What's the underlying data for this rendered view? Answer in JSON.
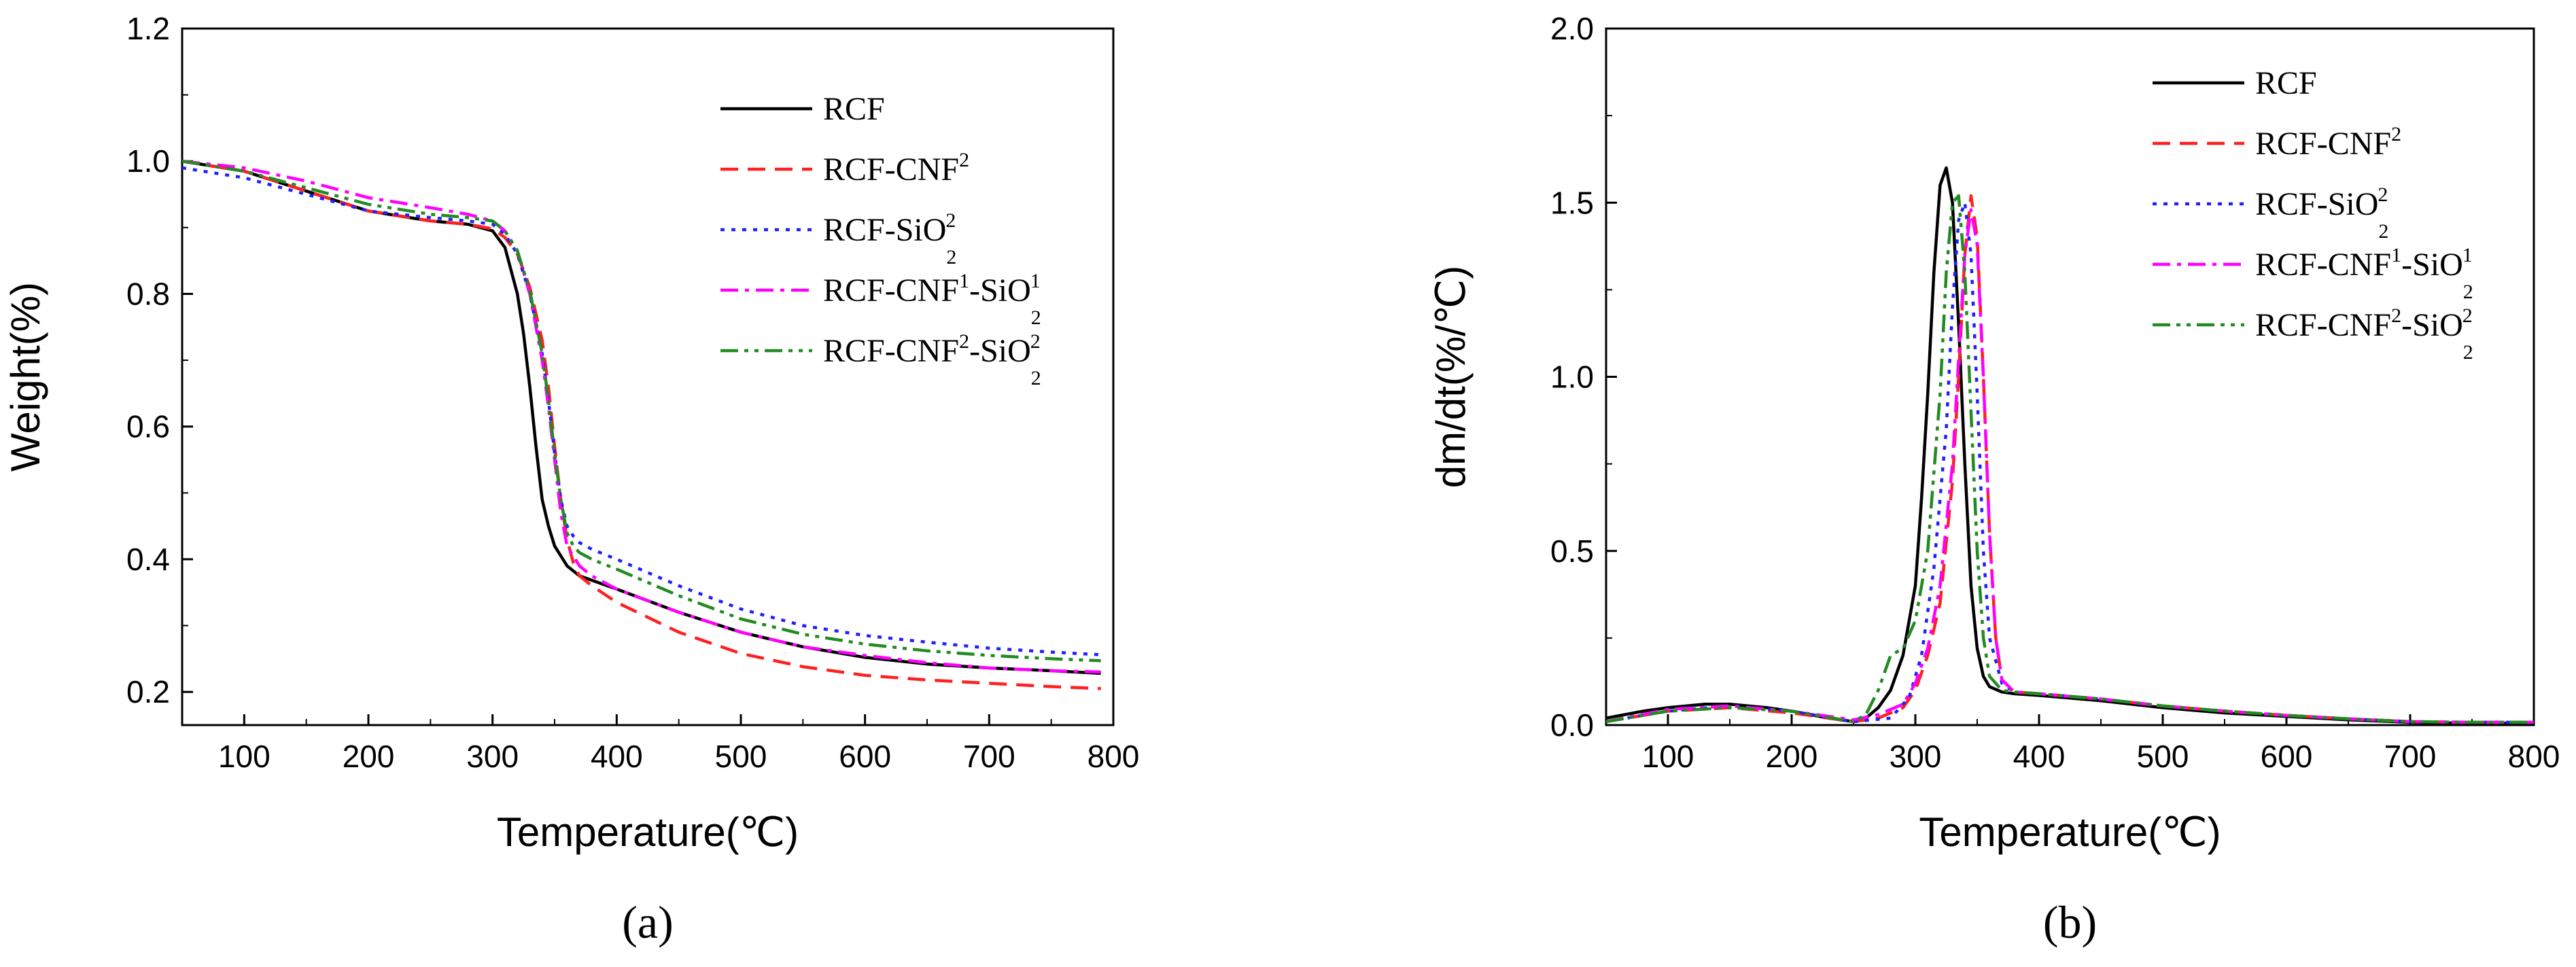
{
  "chart_data": [
    {
      "type": "line",
      "panel_label": "(a)",
      "xlabel": "Temperature(℃)",
      "ylabel": "Weight(%)",
      "xlim": [
        50,
        800
      ],
      "ylim": [
        0.15,
        1.2
      ],
      "xticks": [
        100,
        200,
        300,
        400,
        500,
        600,
        700,
        800
      ],
      "xtick_labels": [
        "100",
        "200",
        "300",
        "400",
        "500",
        "600",
        "700",
        "800"
      ],
      "yticks": [
        0.2,
        0.4,
        0.6,
        0.8,
        1.0,
        1.2
      ],
      "ytick_labels": [
        "0.2",
        "0.4",
        "0.6",
        "0.8",
        "1.0",
        "1.2"
      ],
      "legend_position": "top-right",
      "series": [
        {
          "name": "RCF",
          "legend": [
            [
              "RCF",
              ""
            ]
          ],
          "color": "#000000",
          "dash": "solid",
          "x": [
            50,
            100,
            150,
            200,
            250,
            280,
            300,
            310,
            320,
            325,
            330,
            335,
            340,
            345,
            350,
            360,
            370,
            400,
            450,
            500,
            550,
            600,
            650,
            700,
            750,
            790
          ],
          "y": [
            1.0,
            0.985,
            0.955,
            0.925,
            0.91,
            0.905,
            0.895,
            0.87,
            0.8,
            0.74,
            0.66,
            0.57,
            0.49,
            0.45,
            0.42,
            0.39,
            0.375,
            0.355,
            0.32,
            0.29,
            0.268,
            0.252,
            0.242,
            0.236,
            0.232,
            0.228
          ]
        },
        {
          "name": "RCF-CNF2",
          "legend": [
            [
              "RCF-CNF",
              ""
            ],
            [
              "2",
              "sup"
            ]
          ],
          "color": "#ff2020",
          "dash": "dashed",
          "x": [
            50,
            100,
            150,
            200,
            250,
            280,
            300,
            310,
            320,
            330,
            340,
            345,
            350,
            355,
            360,
            365,
            370,
            380,
            400,
            450,
            500,
            550,
            600,
            650,
            700,
            750,
            790
          ],
          "y": [
            1.0,
            0.985,
            0.955,
            0.925,
            0.91,
            0.905,
            0.898,
            0.885,
            0.86,
            0.81,
            0.73,
            0.66,
            0.57,
            0.49,
            0.43,
            0.395,
            0.375,
            0.36,
            0.335,
            0.29,
            0.258,
            0.238,
            0.225,
            0.218,
            0.213,
            0.208,
            0.205
          ]
        },
        {
          "name": "RCF-SiO22",
          "legend": [
            [
              "RCF-SiO",
              ""
            ],
            [
              "2",
              "sub"
            ],
            [
              "2",
              "sup"
            ]
          ],
          "color": "#2020ff",
          "dash": "dotted",
          "x": [
            50,
            100,
            150,
            200,
            250,
            280,
            300,
            310,
            320,
            330,
            340,
            345,
            350,
            355,
            360,
            365,
            370,
            380,
            400,
            450,
            500,
            550,
            600,
            650,
            700,
            750,
            790
          ],
          "y": [
            0.99,
            0.975,
            0.95,
            0.925,
            0.915,
            0.91,
            0.905,
            0.89,
            0.86,
            0.8,
            0.71,
            0.64,
            0.56,
            0.49,
            0.45,
            0.435,
            0.425,
            0.415,
            0.4,
            0.36,
            0.325,
            0.3,
            0.285,
            0.275,
            0.266,
            0.26,
            0.256
          ]
        },
        {
          "name": "RCF-CNF1-SiO21",
          "legend": [
            [
              "RCF-CNF",
              ""
            ],
            [
              "1",
              "sup"
            ],
            [
              "-SiO",
              ""
            ],
            [
              "2",
              "sub"
            ],
            [
              "1",
              "sup"
            ]
          ],
          "color": "#ff00ff",
          "dash": "dashdot",
          "x": [
            50,
            100,
            150,
            200,
            250,
            280,
            300,
            310,
            320,
            330,
            340,
            345,
            350,
            355,
            360,
            370,
            380,
            400,
            450,
            500,
            550,
            600,
            650,
            700,
            750,
            790
          ],
          "y": [
            1.0,
            0.99,
            0.97,
            0.945,
            0.93,
            0.92,
            0.91,
            0.895,
            0.865,
            0.8,
            0.7,
            0.63,
            0.55,
            0.47,
            0.42,
            0.39,
            0.375,
            0.355,
            0.32,
            0.29,
            0.268,
            0.255,
            0.244,
            0.236,
            0.232,
            0.23
          ]
        },
        {
          "name": "RCF-CNF2-SiO22",
          "legend": [
            [
              "RCF-CNF",
              ""
            ],
            [
              "2",
              "sup"
            ],
            [
              "-SiO",
              ""
            ],
            [
              "2",
              "sub"
            ],
            [
              "2",
              "sup"
            ]
          ],
          "color": "#228b22",
          "dash": "dashdotdot",
          "x": [
            50,
            100,
            150,
            200,
            250,
            280,
            300,
            310,
            320,
            330,
            340,
            345,
            350,
            355,
            360,
            365,
            370,
            380,
            400,
            450,
            500,
            550,
            600,
            650,
            700,
            750,
            790
          ],
          "y": [
            1.0,
            0.985,
            0.96,
            0.935,
            0.92,
            0.915,
            0.91,
            0.895,
            0.865,
            0.805,
            0.71,
            0.64,
            0.56,
            0.49,
            0.44,
            0.42,
            0.41,
            0.4,
            0.385,
            0.345,
            0.31,
            0.287,
            0.272,
            0.262,
            0.255,
            0.25,
            0.247
          ]
        }
      ]
    },
    {
      "type": "line",
      "panel_label": "(b)",
      "xlabel": "Temperature(℃)",
      "ylabel": "dm/dt(%/℃)",
      "xlim": [
        50,
        800
      ],
      "ylim": [
        0,
        2.0
      ],
      "xticks": [
        100,
        200,
        300,
        400,
        500,
        600,
        700,
        800
      ],
      "xtick_labels": [
        "100",
        "200",
        "300",
        "400",
        "500",
        "600",
        "700",
        "800"
      ],
      "yticks": [
        0.0,
        0.5,
        1.0,
        1.5,
        2.0
      ],
      "ytick_labels": [
        "0.0",
        "0.5",
        "1.0",
        "1.5",
        "2.0"
      ],
      "legend_position": "top-right",
      "series": [
        {
          "name": "RCF",
          "legend": [
            [
              "RCF",
              ""
            ]
          ],
          "color": "#000000",
          "dash": "solid",
          "x": [
            50,
            80,
            100,
            130,
            150,
            180,
            200,
            230,
            250,
            260,
            270,
            280,
            290,
            300,
            305,
            310,
            315,
            320,
            325,
            330,
            335,
            340,
            345,
            350,
            355,
            360,
            370,
            380,
            400,
            450,
            500,
            550,
            600,
            650,
            700,
            750,
            800
          ],
          "y": [
            0.02,
            0.04,
            0.05,
            0.06,
            0.06,
            0.05,
            0.04,
            0.02,
            0.01,
            0.02,
            0.05,
            0.1,
            0.2,
            0.4,
            0.65,
            0.95,
            1.3,
            1.55,
            1.6,
            1.5,
            1.15,
            0.75,
            0.4,
            0.22,
            0.14,
            0.11,
            0.095,
            0.09,
            0.085,
            0.07,
            0.05,
            0.035,
            0.025,
            0.015,
            0.008,
            0.005,
            0.005
          ]
        },
        {
          "name": "RCF-CNF2",
          "legend": [
            [
              "RCF-CNF",
              ""
            ],
            [
              "2",
              "sup"
            ]
          ],
          "color": "#ff2020",
          "dash": "dashed",
          "x": [
            50,
            100,
            150,
            200,
            250,
            270,
            290,
            300,
            310,
            320,
            330,
            335,
            340,
            345,
            350,
            355,
            360,
            365,
            370,
            380,
            400,
            450,
            500,
            550,
            600,
            650,
            700,
            750,
            800
          ],
          "y": [
            0.01,
            0.04,
            0.05,
            0.035,
            0.01,
            0.02,
            0.05,
            0.1,
            0.2,
            0.35,
            0.7,
            1.0,
            1.35,
            1.52,
            1.4,
            1.0,
            0.55,
            0.25,
            0.13,
            0.095,
            0.09,
            0.075,
            0.055,
            0.04,
            0.028,
            0.018,
            0.01,
            0.008,
            0.008
          ]
        },
        {
          "name": "RCF-SiO22",
          "legend": [
            [
              "RCF-SiO",
              ""
            ],
            [
              "2",
              "sub"
            ],
            [
              "2",
              "sup"
            ]
          ],
          "color": "#2020ff",
          "dash": "dotted",
          "x": [
            50,
            100,
            150,
            200,
            250,
            280,
            295,
            305,
            315,
            325,
            330,
            335,
            340,
            345,
            350,
            355,
            360,
            370,
            380,
            400,
            450,
            500,
            550,
            600,
            650,
            700,
            750,
            800
          ],
          "y": [
            0.01,
            0.04,
            0.055,
            0.04,
            0.01,
            0.02,
            0.08,
            0.2,
            0.45,
            0.85,
            1.2,
            1.45,
            1.5,
            1.35,
            0.95,
            0.5,
            0.25,
            0.12,
            0.095,
            0.09,
            0.075,
            0.055,
            0.04,
            0.028,
            0.018,
            0.01,
            0.008,
            0.008
          ]
        },
        {
          "name": "RCF-CNF1-SiO21",
          "legend": [
            [
              "RCF-CNF",
              ""
            ],
            [
              "1",
              "sup"
            ],
            [
              "-SiO",
              ""
            ],
            [
              "2",
              "sub"
            ],
            [
              "1",
              "sup"
            ]
          ],
          "color": "#ff00ff",
          "dash": "dashdot",
          "x": [
            50,
            100,
            150,
            200,
            250,
            270,
            290,
            300,
            310,
            320,
            330,
            335,
            340,
            345,
            350,
            355,
            360,
            365,
            370,
            380,
            400,
            450,
            500,
            550,
            600,
            650,
            700,
            750,
            800
          ],
          "y": [
            0.01,
            0.045,
            0.055,
            0.04,
            0.015,
            0.03,
            0.06,
            0.12,
            0.22,
            0.4,
            0.75,
            1.05,
            1.35,
            1.48,
            1.38,
            1.0,
            0.55,
            0.25,
            0.13,
            0.095,
            0.09,
            0.075,
            0.055,
            0.04,
            0.028,
            0.018,
            0.01,
            0.008,
            0.008
          ]
        },
        {
          "name": "RCF-CNF2-SiO22",
          "legend": [
            [
              "RCF-CNF",
              ""
            ],
            [
              "2",
              "sup"
            ],
            [
              "-SiO",
              ""
            ],
            [
              "2",
              "sub"
            ],
            [
              "2",
              "sup"
            ]
          ],
          "color": "#228b22",
          "dash": "dashdotdot",
          "x": [
            50,
            100,
            150,
            200,
            250,
            260,
            270,
            280,
            290,
            300,
            310,
            320,
            325,
            330,
            335,
            340,
            345,
            350,
            355,
            360,
            370,
            380,
            400,
            450,
            500,
            550,
            600,
            650,
            700,
            750,
            800
          ],
          "y": [
            0.01,
            0.04,
            0.05,
            0.04,
            0.01,
            0.03,
            0.1,
            0.2,
            0.22,
            0.3,
            0.5,
            0.95,
            1.3,
            1.5,
            1.52,
            1.3,
            0.9,
            0.5,
            0.25,
            0.14,
            0.1,
            0.095,
            0.09,
            0.075,
            0.055,
            0.04,
            0.028,
            0.018,
            0.01,
            0.008,
            0.008
          ]
        }
      ]
    }
  ]
}
